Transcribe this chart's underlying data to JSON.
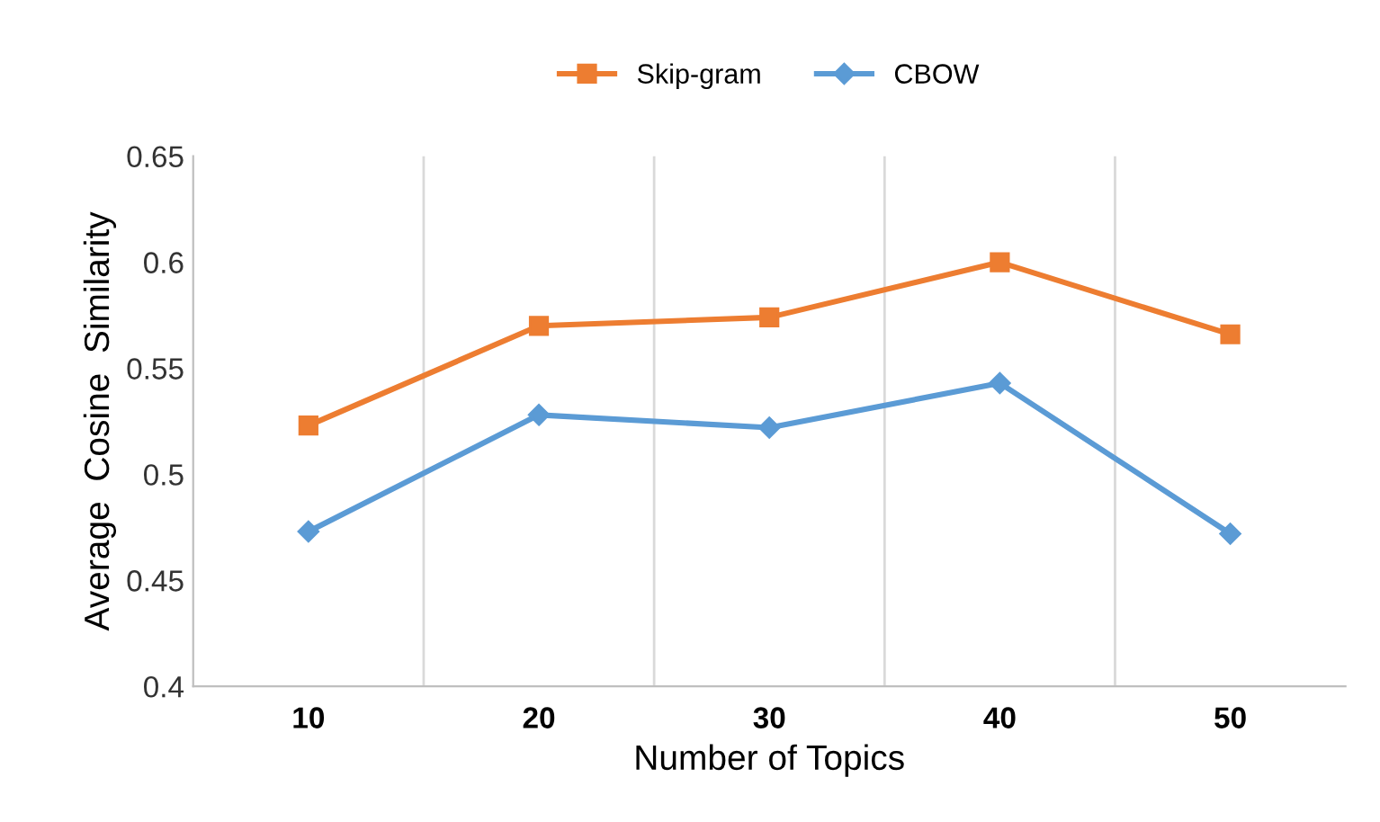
{
  "chart_data": {
    "type": "line",
    "xlabel": "Number of Topics",
    "ylabel": "Average  Cosine  Similarity",
    "categories": [
      "10",
      "20",
      "30",
      "40",
      "50"
    ],
    "series": [
      {
        "name": "Skip-gram",
        "color": "#ed7d31",
        "marker": "square",
        "values": [
          0.523,
          0.57,
          0.574,
          0.6,
          0.566
        ]
      },
      {
        "name": "CBOW",
        "color": "#5b9bd5",
        "marker": "diamond",
        "values": [
          0.473,
          0.528,
          0.522,
          0.543,
          0.472
        ]
      }
    ],
    "ylim": [
      0.4,
      0.65
    ],
    "yticks": [
      0.4,
      0.45,
      0.5,
      0.55,
      0.6,
      0.65
    ],
    "grid": "x",
    "legend": "top",
    "line_style": "solid"
  }
}
